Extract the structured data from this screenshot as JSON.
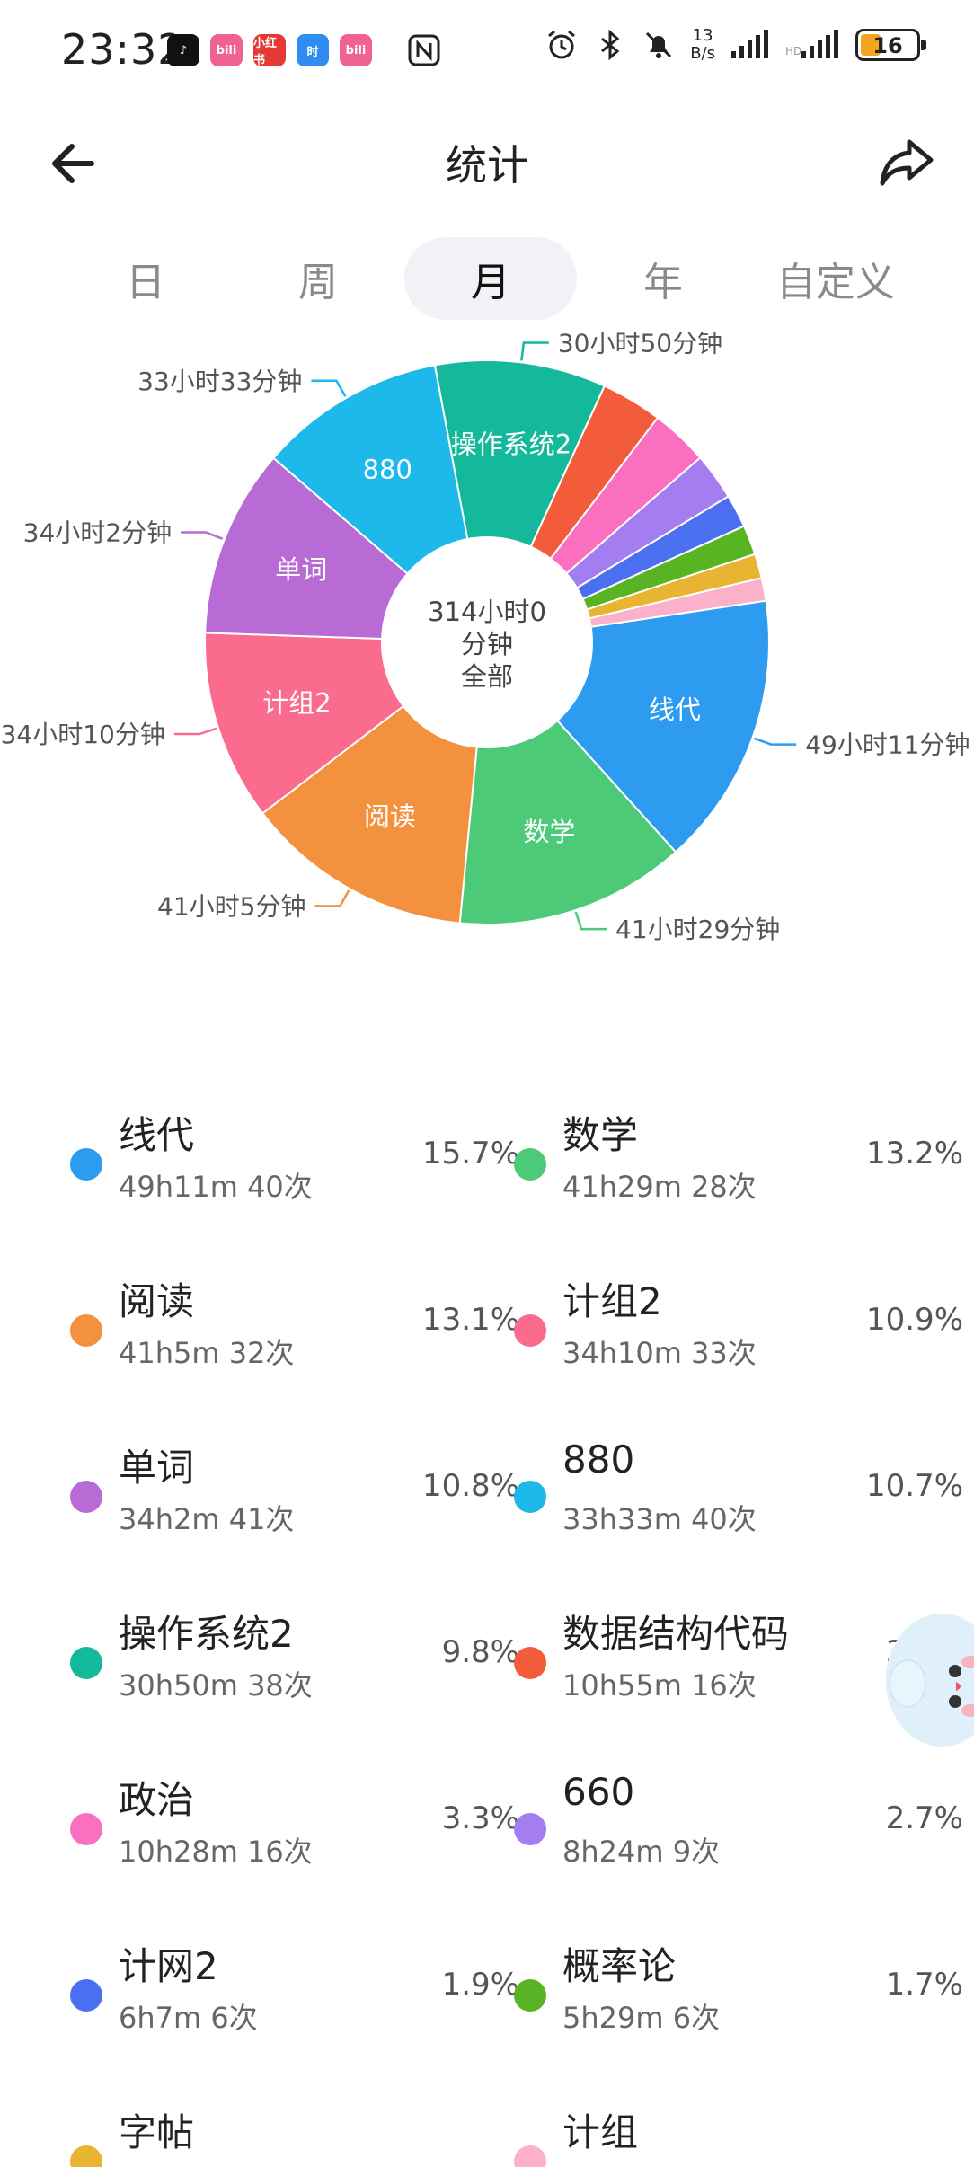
{
  "status_bar": {
    "time": "23:32",
    "apps": [
      {
        "icon": "tiktok-icon",
        "color": "#111111",
        "label": "♪"
      },
      {
        "icon": "bilibili-icon",
        "color": "#f06292",
        "label": "bili"
      },
      {
        "icon": "xiaohongshu-icon",
        "color": "#e53935",
        "label": "小红书"
      },
      {
        "icon": "time-app-icon",
        "color": "#2f8cf0",
        "label": "时"
      },
      {
        "icon": "bilibili-icon-2",
        "color": "#f06292",
        "label": "bili"
      }
    ],
    "net_speed_value": "13",
    "net_speed_unit": "B/s",
    "battery_level": "16"
  },
  "header": {
    "title": "统计"
  },
  "tabs": [
    {
      "label": "日",
      "active": false
    },
    {
      "label": "周",
      "active": false
    },
    {
      "label": "月",
      "active": true
    },
    {
      "label": "年",
      "active": false
    },
    {
      "label": "自定义",
      "active": false
    }
  ],
  "chart_data": {
    "type": "pie",
    "center_text": [
      "314小时0",
      "分钟",
      "全部"
    ],
    "slices": [
      {
        "name": "线代",
        "value": 15.7,
        "color": "#2d9bf0",
        "outer_label": "49小时11分钟"
      },
      {
        "name": "数学",
        "value": 13.2,
        "color": "#4cca78",
        "outer_label": "41小时29分钟"
      },
      {
        "name": "阅读",
        "value": 13.1,
        "color": "#f4913f",
        "outer_label": "41小时5分钟"
      },
      {
        "name": "计组2",
        "value": 10.9,
        "color": "#fa6b8e",
        "outer_label": "34小时10分钟"
      },
      {
        "name": "单词",
        "value": 10.8,
        "color": "#b86bd4",
        "outer_label": "34小时2分钟"
      },
      {
        "name": "880",
        "value": 10.7,
        "color": "#1cb9ea",
        "outer_label": "33小时33分钟"
      },
      {
        "name": "操作系统2",
        "value": 9.8,
        "color": "#14b89a",
        "outer_label": "30小时50分钟"
      },
      {
        "name": "数据结构代码",
        "value": 3.5,
        "color": "#f25c3b",
        "outer_label": ""
      },
      {
        "name": "政治",
        "value": 3.3,
        "color": "#fb6fc0",
        "outer_label": ""
      },
      {
        "name": "660",
        "value": 2.7,
        "color": "#a47ef0",
        "outer_label": ""
      },
      {
        "name": "计网2",
        "value": 1.9,
        "color": "#4a6ff0",
        "outer_label": ""
      },
      {
        "name": "概率论",
        "value": 1.7,
        "color": "#58b422",
        "outer_label": ""
      },
      {
        "name": "字帖",
        "value": 1.4,
        "color": "#e8b432",
        "outer_label": ""
      },
      {
        "name": "计组",
        "value": 1.3,
        "color": "#fbb1c9",
        "outer_label": ""
      }
    ]
  },
  "legend": [
    {
      "name": "线代",
      "meta": "49h11m  40次",
      "pct": "15.7%",
      "color": "#2d9bf0"
    },
    {
      "name": "数学",
      "meta": "41h29m  28次",
      "pct": "13.2%",
      "color": "#4cca78"
    },
    {
      "name": "阅读",
      "meta": "41h5m  32次",
      "pct": "13.1%",
      "color": "#f4913f"
    },
    {
      "name": "计组2",
      "meta": "34h10m  33次",
      "pct": "10.9%",
      "color": "#fa6b8e"
    },
    {
      "name": "单词",
      "meta": "34h2m  41次",
      "pct": "10.8%",
      "color": "#b86bd4"
    },
    {
      "name": "880",
      "meta": "33h33m  40次",
      "pct": "10.7%",
      "color": "#1cb9ea"
    },
    {
      "name": "操作系统2",
      "meta": "30h50m  38次",
      "pct": "9.8%",
      "color": "#14b89a"
    },
    {
      "name": "数据结构代码",
      "meta": "10h55m  16次",
      "pct": "3.5%",
      "color": "#f25c3b"
    },
    {
      "name": "政治",
      "meta": "10h28m  16次",
      "pct": "3.3%",
      "color": "#fb6fc0"
    },
    {
      "name": "660",
      "meta": "8h24m  9次",
      "pct": "2.7%",
      "color": "#a47ef0"
    },
    {
      "name": "计网2",
      "meta": "6h7m  6次",
      "pct": "1.9%",
      "color": "#4a6ff0"
    },
    {
      "name": "概率论",
      "meta": "5h29m  6次",
      "pct": "1.7%",
      "color": "#58b422"
    },
    {
      "name": "字帖",
      "meta": "",
      "pct": "",
      "color": "#e8b432"
    },
    {
      "name": "计组",
      "meta": "",
      "pct": "",
      "color": "#fbb1c9"
    }
  ]
}
